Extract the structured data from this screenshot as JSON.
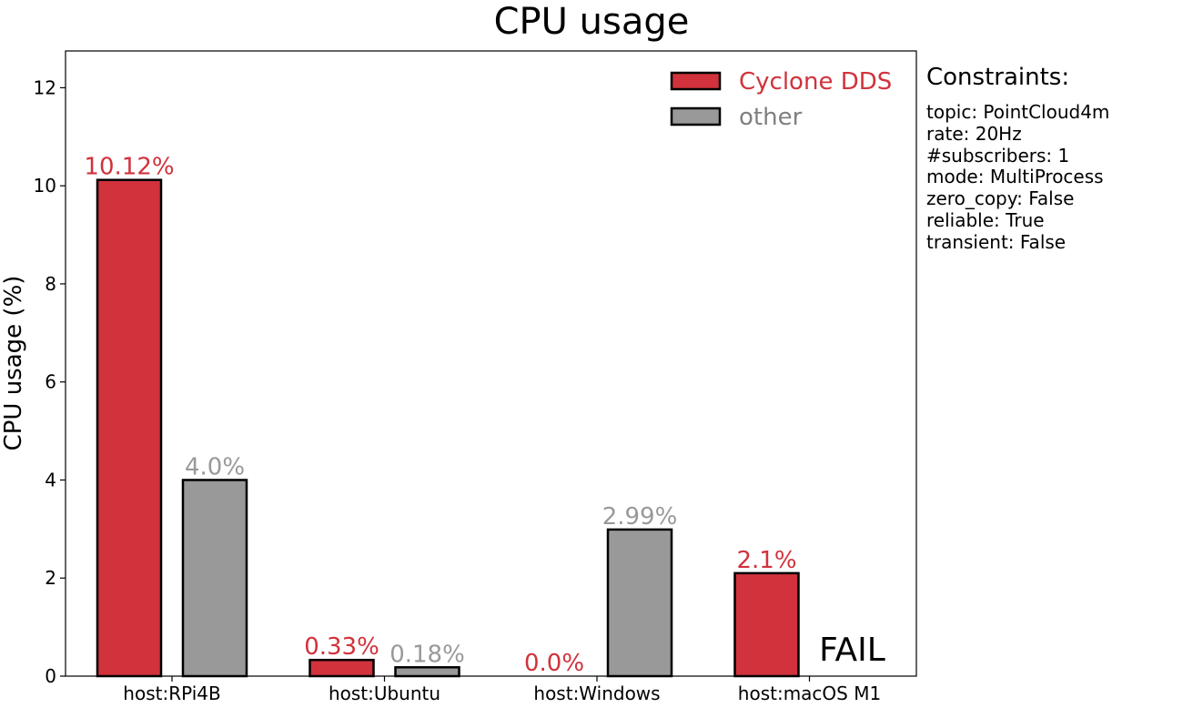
{
  "chart_data": {
    "type": "bar",
    "title": "CPU usage",
    "xlabel": "",
    "ylabel": "CPU usage (%)",
    "categories": [
      "host:RPi4B",
      "host:Ubuntu",
      "host:Windows",
      "host:macOS M1"
    ],
    "ylim": [
      0,
      12.75
    ],
    "yticks": [
      0,
      2,
      4,
      6,
      8,
      10,
      12
    ],
    "grid": false,
    "legend_position": "top-right",
    "series": [
      {
        "name": "Cyclone DDS",
        "color": "#d1323c",
        "values": [
          10.12,
          0.33,
          0.0,
          2.1
        ],
        "labels": [
          "10.12%",
          "0.33%",
          "0.0%",
          "2.1%"
        ]
      },
      {
        "name": "other",
        "color": "#999999",
        "values": [
          4.0,
          0.18,
          2.99,
          null
        ],
        "labels": [
          "4.0%",
          "0.18%",
          "2.99%",
          "FAIL"
        ]
      }
    ],
    "legend_text_colors": [
      "#d1323c",
      "#808080"
    ],
    "fail_label_color": "#000000"
  },
  "constraints": {
    "title": "Constraints:",
    "lines": [
      "topic: PointCloud4m",
      "rate: 20Hz",
      "#subscribers: 1",
      "mode: MultiProcess",
      "zero_copy: False",
      "reliable: True",
      "transient: False"
    ]
  }
}
